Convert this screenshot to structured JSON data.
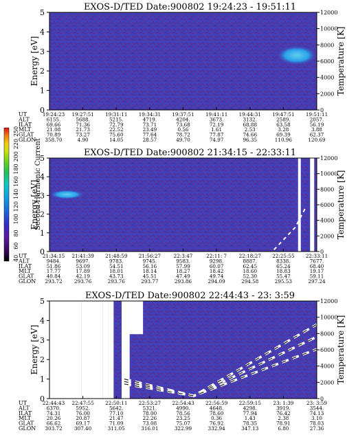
{
  "color_scale": {
    "label": "Second Harmonic Current",
    "ticks": [
      "40",
      "60",
      "80",
      "100",
      "120",
      "140",
      "160",
      "180",
      "200",
      "220",
      "250"
    ],
    "colors": [
      "#000000",
      "#3a0a5a",
      "#5a1aa0",
      "#3030c8",
      "#1e6ad8",
      "#10a0e0",
      "#10c8c0",
      "#20c060",
      "#60d020",
      "#c8e010",
      "#f0d010",
      "#f08010",
      "#e01010"
    ]
  },
  "panel_labels": {
    "y_left": "Energy [eV]",
    "y_right": "Temperature [K]",
    "rows": [
      "UT",
      "ALT",
      "ILAT",
      "MLT",
      "GLAT",
      "GLON"
    ]
  },
  "chart_data": [
    {
      "type": "heatmap",
      "title": "EXOS-D/TED   Date:900802  19:24:23 - 19:51:11",
      "ylabel": "Energy [eV]",
      "ylabel_right": "Temperature [K]",
      "ylim": [
        0,
        5
      ],
      "ylim_right": [
        0,
        12000
      ],
      "yticks": [
        "0",
        "1",
        "2",
        "3",
        "4",
        "5"
      ],
      "yticks_right": [
        "0",
        "2000",
        "4000",
        "6000",
        "8000",
        "10000",
        "12000"
      ],
      "ephemeris": [
        [
          "19:24:23",
          "6155.",
          "69.66",
          "21.08",
          "70.89",
          "358.70"
        ],
        [
          "19:27:51",
          "5688.",
          "71.36",
          "21.73",
          "73.27",
          "4.90"
        ],
        [
          "19:31:11",
          "5215.",
          "72.79",
          "22.52",
          "75.60",
          "14.05"
        ],
        [
          "19:34:31",
          "4719.",
          "73.71",
          "23.49",
          "77.64",
          "28.57"
        ],
        [
          "19:37:51",
          "4204.",
          "73.68",
          "0.56",
          "78.72",
          "49.70"
        ],
        [
          "19:41:11",
          "3673.",
          "72.19",
          "1.61",
          "77.87",
          "74.97"
        ],
        [
          "19:44:31",
          "3132.",
          "68.88",
          "2.53",
          "74.66",
          "96.35"
        ],
        [
          "19:47:51",
          "2589.",
          "63.58",
          "3.28",
          "69.39",
          "110.96"
        ],
        [
          "19:51:11",
          "2057.",
          "56.19",
          "3.88",
          "62.37",
          "120.69"
        ]
      ],
      "features": [
        {
          "x0": 0.85,
          "x1": 1.0,
          "e0": 2.3,
          "e1": 3.3,
          "level": "cyan-blue"
        }
      ]
    },
    {
      "type": "heatmap",
      "title": "EXOS-D/TED   Date:900802  21:34:15 - 22:33:11",
      "ylabel": "Energy [eV]",
      "ylabel_right": "Temperature [K]",
      "ylim": [
        0,
        5
      ],
      "ylim_right": [
        0,
        12000
      ],
      "yticks": [
        "0",
        "1",
        "2",
        "3",
        "4",
        "5"
      ],
      "yticks_right": [
        "0",
        "2000",
        "4000",
        "6000",
        "8000",
        "10000",
        "12000"
      ],
      "ephemeris": [
        [
          "21:34:15",
          "9484.",
          "51.86",
          "17.77",
          "40.84",
          "293.72"
        ],
        [
          "21:41:39",
          "9697.",
          "53.09",
          "17.89",
          "42.19",
          "293.76"
        ],
        [
          "21:48:59",
          "9783.",
          "54.51",
          "18.01",
          "43.73",
          "293.76"
        ],
        [
          "21:56:27",
          "9745.",
          "56.16",
          "18.14",
          "45.51",
          "293.77"
        ],
        [
          "22:3:47",
          "9583.",
          "57.99",
          "18.27",
          "47.49",
          "293.86"
        ],
        [
          "22:11: 7",
          "9298.",
          "60.07",
          "18.42",
          "49.74",
          "294.09"
        ],
        [
          "22:18:27",
          "8887.",
          "62.45",
          "18.60",
          "52.30",
          "294.58"
        ],
        [
          "22:25:55",
          "8338.",
          "65.24",
          "18.83",
          "55.47",
          "295.53"
        ],
        [
          "22:33:11",
          "7677.",
          "68.40",
          "19.17",
          "59.11",
          "297.24"
        ]
      ],
      "features": [
        {
          "x0": 0.0,
          "x1": 0.13,
          "e0": 2.8,
          "e1": 3.3,
          "level": "cyan"
        }
      ]
    },
    {
      "type": "heatmap",
      "title": "EXOS-D/TED   Date:900802  22:44:43 - 23: 3:59",
      "ylabel": "Energy [eV]",
      "ylabel_right": "Temperature [K]",
      "ylim": [
        0,
        5
      ],
      "ylim_right": [
        0,
        12000
      ],
      "yticks": [
        "0",
        "1",
        "2",
        "3",
        "4",
        "5"
      ],
      "yticks_right": [
        "0",
        "2000",
        "4000",
        "6000",
        "8000",
        "10000",
        "12000"
      ],
      "ephemeris": [
        [
          "22:44:43",
          "6370.",
          "74.31",
          "20.26",
          "66.62",
          "303.72"
        ],
        [
          "22:47:55",
          "5952.",
          "76.00",
          "20.87",
          "69.17",
          "307.40"
        ],
        [
          "22:50:11",
          "5642.",
          "77.10",
          "21.47",
          "71.09",
          "311.05"
        ],
        [
          "22:53:27",
          "5321.",
          "78.00",
          "22.26",
          "73.08",
          "316.01"
        ],
        [
          "22:54:43",
          "4990.",
          "78.56",
          "23.25",
          "75.07",
          "322.99"
        ],
        [
          "22:56:59",
          "4648.",
          "78.60",
          "0.36",
          "76.92",
          "332.94"
        ],
        [
          "22:59:15",
          "4298.",
          "77.94",
          "1.43",
          "78.35",
          "347.13"
        ],
        [
          "23: 1:39",
          "3919.",
          "76.42",
          "2.38",
          "78.91",
          "6.80"
        ],
        [
          "23: 3:59",
          "3544.",
          "74.13",
          "3.10",
          "78.03",
          "27.36"
        ]
      ],
      "features": [
        {
          "kind": "v-shape",
          "x_min": 0.54,
          "e_min": 0.0,
          "level": "white-bands"
        }
      ]
    }
  ]
}
